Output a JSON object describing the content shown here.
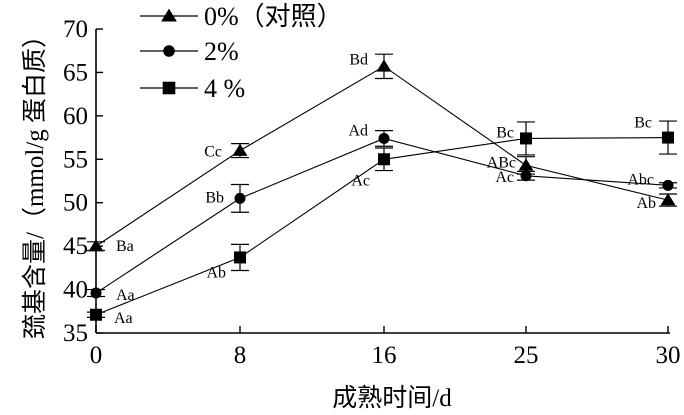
{
  "chart_data": {
    "type": "line",
    "xlabel": "成熟时间/d",
    "ylabel": "巯基含量/（mmol/g 蛋白质）",
    "x_categories": [
      "0",
      "8",
      "16",
      "25",
      "30"
    ],
    "ylim": [
      35,
      70
    ],
    "yticks": [
      "35",
      "40",
      "45",
      "50",
      "55",
      "60",
      "65",
      "70"
    ],
    "grid": false,
    "legend_position": "top-left",
    "series": [
      {
        "name": "0%（对照）",
        "marker": "triangle",
        "values": [
          45.0,
          56.0,
          65.7,
          54.3,
          50.3
        ],
        "errors": [
          0.5,
          0.8,
          1.4,
          1.0,
          0.7
        ],
        "labels": [
          "Ba",
          "Cc",
          "Bd",
          "ABc",
          "Ab"
        ]
      },
      {
        "name": "2%",
        "marker": "circle",
        "values": [
          39.6,
          50.5,
          57.4,
          53.1,
          52.0
        ],
        "errors": [
          0.4,
          1.6,
          0.9,
          0.5,
          0.3
        ],
        "labels": [
          "Aa",
          "Bb",
          "Ad",
          "Ac",
          "Abc"
        ]
      },
      {
        "name": "4 %",
        "marker": "square",
        "values": [
          37.1,
          43.7,
          55.0,
          57.4,
          57.5
        ],
        "errors": [
          0.3,
          1.5,
          1.3,
          1.9,
          1.9
        ],
        "labels": [
          "Aa",
          "Ab",
          "Ac",
          "Bc",
          "Bc"
        ]
      }
    ]
  }
}
